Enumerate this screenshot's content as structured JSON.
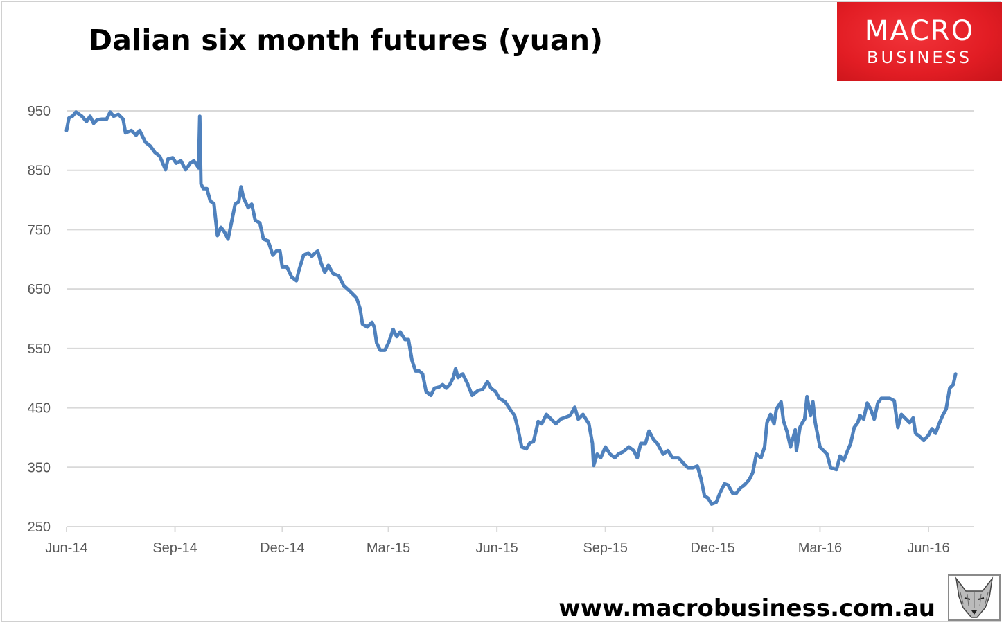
{
  "header": {
    "title": "Dalian six month futures (yuan)"
  },
  "logo": {
    "line1": "MACRO",
    "line2": "BUSINESS",
    "color": "#e21d24"
  },
  "footer": {
    "url": "www.macrobusiness.com.au",
    "mascot_icon": "fox-sketch-icon"
  },
  "chart_data": {
    "type": "line",
    "title": "Dalian six month futures (yuan)",
    "xlabel": "",
    "ylabel": "",
    "ylim": [
      250,
      950
    ],
    "yticks": [
      "950",
      "850",
      "750",
      "650",
      "550",
      "450",
      "350",
      "250"
    ],
    "xticks": [
      "Jun-14",
      "Sep-14",
      "Dec-14",
      "Mar-15",
      "Jun-15",
      "Sep-15",
      "Dec-15",
      "Mar-16",
      "Jun-16"
    ],
    "xtick_dates": [
      "2014-06-01",
      "2014-09-01",
      "2014-12-01",
      "2015-03-01",
      "2015-06-01",
      "2015-09-01",
      "2015-12-01",
      "2016-03-01",
      "2016-06-01"
    ],
    "xlim": [
      "2014-06-01",
      "2016-07-10"
    ],
    "grid": "horizontal",
    "line_color": "#4f81bd",
    "x": [
      "2014-06-01",
      "2014-06-03",
      "2014-06-06",
      "2014-06-09",
      "2014-06-14",
      "2014-06-18",
      "2014-06-21",
      "2014-06-24",
      "2014-06-27",
      "2014-07-01",
      "2014-07-05",
      "2014-07-08",
      "2014-07-11",
      "2014-07-15",
      "2014-07-19",
      "2014-07-21",
      "2014-07-26",
      "2014-07-30",
      "2014-08-02",
      "2014-08-07",
      "2014-08-11",
      "2014-08-15",
      "2014-08-19",
      "2014-08-24",
      "2014-08-26",
      "2014-08-30",
      "2014-09-02",
      "2014-09-06",
      "2014-09-10",
      "2014-09-14",
      "2014-09-17",
      "2014-09-21",
      "2014-09-22",
      "2014-09-23",
      "2014-09-25",
      "2014-09-28",
      "2014-10-01",
      "2014-10-04",
      "2014-10-07",
      "2014-10-10",
      "2014-10-13",
      "2014-10-16",
      "2014-10-19",
      "2014-10-22",
      "2014-10-25",
      "2014-10-27",
      "2014-10-29",
      "2014-11-02",
      "2014-11-05",
      "2014-11-08",
      "2014-11-12",
      "2014-11-15",
      "2014-11-19",
      "2014-11-23",
      "2014-11-26",
      "2014-11-29",
      "2014-12-01",
      "2014-12-05",
      "2014-12-09",
      "2014-12-13",
      "2014-12-15",
      "2014-12-19",
      "2014-12-23",
      "2014-12-26",
      "2014-12-29",
      "2014-12-31",
      "2015-01-03",
      "2015-01-06",
      "2015-01-09",
      "2015-01-13",
      "2015-01-18",
      "2015-01-22",
      "2015-01-27",
      "2015-01-30",
      "2015-02-02",
      "2015-02-05",
      "2015-02-07",
      "2015-02-11",
      "2015-02-15",
      "2015-02-17",
      "2015-02-19",
      "2015-02-22",
      "2015-02-26",
      "2015-03-01",
      "2015-03-05",
      "2015-03-08",
      "2015-03-11",
      "2015-03-15",
      "2015-03-18",
      "2015-03-21",
      "2015-03-24",
      "2015-03-27",
      "2015-03-30",
      "2015-04-02",
      "2015-04-06",
      "2015-04-09",
      "2015-04-13",
      "2015-04-16",
      "2015-04-19",
      "2015-04-22",
      "2015-04-25",
      "2015-04-27",
      "2015-04-29",
      "2015-05-03",
      "2015-05-07",
      "2015-05-11",
      "2015-05-16",
      "2015-05-20",
      "2015-05-24",
      "2015-05-27",
      "2015-05-31",
      "2015-06-03",
      "2015-06-08",
      "2015-06-12",
      "2015-06-16",
      "2015-06-19",
      "2015-06-22",
      "2015-06-26",
      "2015-06-29",
      "2015-07-02",
      "2015-07-06",
      "2015-07-09",
      "2015-07-13",
      "2015-07-17",
      "2015-07-21",
      "2015-07-25",
      "2015-07-29",
      "2015-08-02",
      "2015-08-06",
      "2015-08-09",
      "2015-08-13",
      "2015-08-18",
      "2015-08-21",
      "2015-08-22",
      "2015-08-25",
      "2015-08-28",
      "2015-09-01",
      "2015-09-05",
      "2015-09-09",
      "2015-09-12",
      "2015-09-16",
      "2015-09-21",
      "2015-09-25",
      "2015-09-28",
      "2015-10-01",
      "2015-10-05",
      "2015-10-08",
      "2015-10-12",
      "2015-10-15",
      "2015-10-20",
      "2015-10-24",
      "2015-10-28",
      "2015-11-02",
      "2015-11-06",
      "2015-11-10",
      "2015-11-14",
      "2015-11-18",
      "2015-11-21",
      "2015-11-24",
      "2015-11-27",
      "2015-11-30",
      "2015-12-04",
      "2015-12-07",
      "2015-12-11",
      "2015-12-14",
      "2015-12-18",
      "2015-12-21",
      "2015-12-24",
      "2015-12-28",
      "2016-01-01",
      "2016-01-04",
      "2016-01-07",
      "2016-01-11",
      "2016-01-14",
      "2016-01-16",
      "2016-01-19",
      "2016-01-22",
      "2016-01-24",
      "2016-01-28",
      "2016-01-30",
      "2016-02-02",
      "2016-02-05",
      "2016-02-09",
      "2016-02-10",
      "2016-02-13",
      "2016-02-15",
      "2016-02-17",
      "2016-02-19",
      "2016-02-22",
      "2016-02-24",
      "2016-02-26",
      "2016-03-01",
      "2016-03-04",
      "2016-03-07",
      "2016-03-10",
      "2016-03-15",
      "2016-03-18",
      "2016-03-21",
      "2016-03-24",
      "2016-03-27",
      "2016-03-30",
      "2016-04-02",
      "2016-04-04",
      "2016-04-07",
      "2016-04-10",
      "2016-04-13",
      "2016-04-16",
      "2016-04-19",
      "2016-04-22",
      "2016-04-25",
      "2016-04-29",
      "2016-05-03",
      "2016-05-06",
      "2016-05-09",
      "2016-05-13",
      "2016-05-16",
      "2016-05-19",
      "2016-05-21",
      "2016-05-25",
      "2016-05-28",
      "2016-06-01",
      "2016-06-04",
      "2016-06-07",
      "2016-06-10",
      "2016-06-13",
      "2016-06-16",
      "2016-06-19",
      "2016-06-22",
      "2016-06-24"
    ],
    "series": [
      {
        "values": [
          917,
          938,
          941,
          948,
          941,
          932,
          941,
          929,
          935,
          936,
          936,
          948,
          941,
          944,
          936,
          913,
          917,
          909,
          917,
          897,
          891,
          880,
          874,
          851,
          869,
          871,
          862,
          866,
          851,
          862,
          866,
          854,
          941,
          827,
          819,
          819,
          798,
          794,
          740,
          754,
          746,
          734,
          763,
          793,
          797,
          822,
          804,
          787,
          793,
          766,
          761,
          734,
          731,
          707,
          714,
          714,
          687,
          687,
          670,
          664,
          681,
          707,
          711,
          705,
          711,
          714,
          693,
          678,
          690,
          676,
          672,
          656,
          647,
          641,
          635,
          617,
          591,
          586,
          594,
          586,
          559,
          547,
          547,
          559,
          582,
          570,
          578,
          565,
          565,
          530,
          512,
          512,
          507,
          477,
          471,
          483,
          485,
          489,
          483,
          489,
          501,
          516,
          501,
          507,
          491,
          471,
          479,
          481,
          494,
          483,
          477,
          466,
          460,
          448,
          437,
          413,
          384,
          381,
          391,
          393,
          427,
          423,
          439,
          431,
          423,
          431,
          434,
          437,
          451,
          431,
          439,
          423,
          390,
          353,
          372,
          366,
          384,
          372,
          366,
          372,
          376,
          384,
          378,
          366,
          390,
          390,
          411,
          396,
          390,
          372,
          378,
          366,
          366,
          357,
          349,
          349,
          352,
          331,
          302,
          298,
          288,
          291,
          306,
          322,
          320,
          306,
          306,
          314,
          320,
          329,
          341,
          372,
          366,
          384,
          425,
          439,
          423,
          448,
          460,
          428,
          410,
          384,
          413,
          378,
          417,
          425,
          431,
          469,
          437,
          460,
          425,
          384,
          378,
          372,
          349,
          346,
          369,
          361,
          376,
          390,
          417,
          425,
          437,
          431,
          458,
          448,
          431,
          458,
          466,
          466,
          466,
          462,
          417,
          439,
          431,
          425,
          433,
          407,
          401,
          395,
          404,
          415,
          407,
          423,
          437,
          448,
          483,
          489,
          507
        ]
      }
    ]
  }
}
